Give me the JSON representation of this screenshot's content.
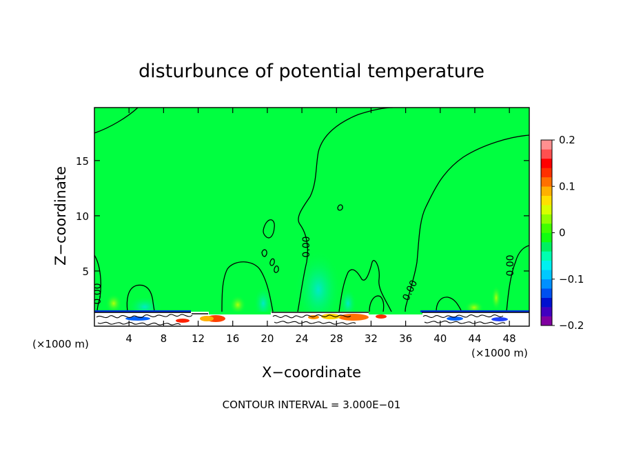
{
  "chart_data": {
    "type": "heatmap",
    "title": "disturbunce of potential temperature",
    "xlabel": "X−coordinate",
    "ylabel": "Z−coordinate",
    "x_unit_left": "(×1000 m)",
    "x_unit_right": "(×1000 m)",
    "xlim": [
      0,
      50.3
    ],
    "ylim": [
      0,
      19.8
    ],
    "x_ticks": [
      4,
      8,
      12,
      16,
      20,
      24,
      28,
      32,
      36,
      40,
      44,
      48
    ],
    "y_ticks": [
      5,
      10,
      15
    ],
    "contour_interval_text": "CONTOUR INTERVAL = 3.000E−01",
    "contour_labels": [
      {
        "text": "0.00",
        "x": 0.7,
        "z": 2.9
      },
      {
        "text": "0.00",
        "x": 24.8,
        "z": 7.2
      },
      {
        "text": "0.00",
        "x": 37.0,
        "z": 3.2
      },
      {
        "text": "0.00",
        "x": 48.0,
        "z": 5.3
      }
    ],
    "colorbar": {
      "min": -0.2,
      "max": 0.2,
      "tick_labels": [
        {
          "label": "0.2",
          "value": 0.2
        },
        {
          "label": "0.1",
          "value": 0.1
        },
        {
          "label": "0",
          "value": 0
        },
        {
          "label": "−0.1",
          "value": -0.1
        },
        {
          "label": "−0.2",
          "value": -0.2
        }
      ],
      "colors": [
        "#8000a0",
        "#4000c0",
        "#0010d0",
        "#0050f0",
        "#0090ff",
        "#00c8ff",
        "#00f0f0",
        "#00ffb0",
        "#00f060",
        "#10ff10",
        "#40ff00",
        "#90ff00",
        "#d8ff00",
        "#ffe000",
        "#ffb000",
        "#ff7000",
        "#ff3000",
        "#ff0000",
        "#ff5050",
        "#ff9090"
      ]
    },
    "background_value": 0.0
  }
}
